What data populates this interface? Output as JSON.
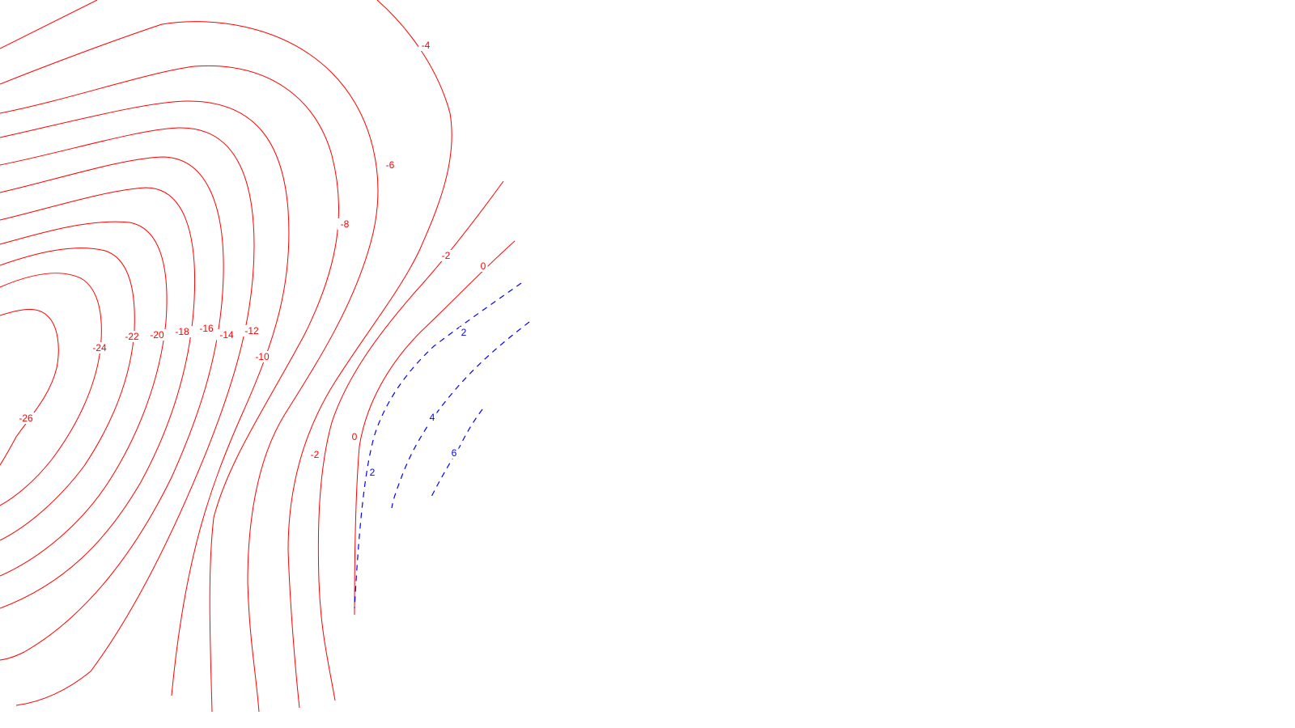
{
  "colors": {
    "negative_contour": "#ff0000",
    "positive_contour": "#0000ff",
    "background": "#ffffff"
  },
  "contour_labels": {
    "m26": "-26",
    "m24": "-24",
    "m22": "-22",
    "m20": "-20",
    "m18": "-18",
    "m16": "-16",
    "m14": "-14",
    "m12": "-12",
    "m10": "-10",
    "m8": "-8",
    "m6": "-6",
    "m4": "-4",
    "m2_upper": "-2",
    "m2_lower": "-2",
    "zero_upper": "0",
    "zero_lower": "0",
    "p2_upper": "2",
    "p2_lower": "2",
    "p4": "4",
    "p6": "6"
  }
}
